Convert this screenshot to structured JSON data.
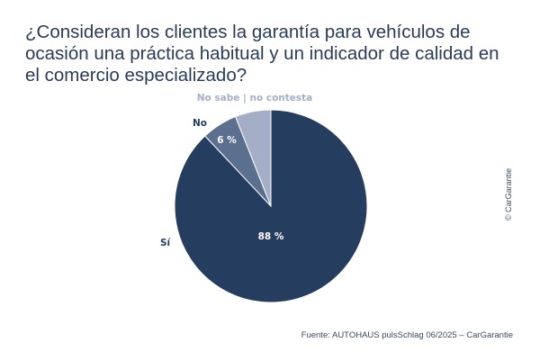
{
  "chart_data": {
    "type": "pie",
    "title": "¿Consideran los clientes la garantía para vehículos de ocasión una práctica habitual y un indicador de calidad en el comercio especializado?",
    "slices": [
      {
        "label": "Sí",
        "value": 88,
        "value_label": "88 %",
        "color": "#253d5e"
      },
      {
        "label": "No",
        "value": 6,
        "value_label": "6 %",
        "color": "#5b6f8f"
      },
      {
        "label": "No sabe | no contesta",
        "value": 6,
        "value_label": "",
        "color": "#a4afc7"
      }
    ]
  },
  "copyright": "© CarGarantie",
  "source": "Fuente: AUTOHAUS pulsSchlag 06/2025 – CarGarantie"
}
